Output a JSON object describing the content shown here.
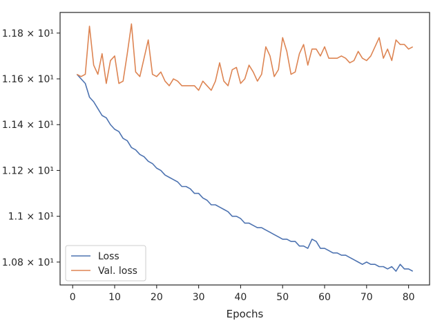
{
  "chart_data": {
    "type": "line",
    "xlabel": "Epochs",
    "ylabel": "",
    "xlim": [
      -3,
      85
    ],
    "ylim": [
      10.7,
      11.89
    ],
    "x_ticks": [
      0,
      10,
      20,
      30,
      40,
      50,
      60,
      70,
      80
    ],
    "y_ticks": [
      {
        "value": 10.8,
        "label": "1.08 × 10¹"
      },
      {
        "value": 11.0,
        "label": "1.1 × 10¹"
      },
      {
        "value": 11.2,
        "label": "1.12 × 10¹"
      },
      {
        "value": 11.4,
        "label": "1.14 × 10¹"
      },
      {
        "value": 11.6,
        "label": "1.16 × 10¹"
      },
      {
        "value": 11.8,
        "label": "1.18 × 10¹"
      }
    ],
    "grid": false,
    "legend_position": "bottom-left",
    "x": [
      1,
      2,
      3,
      4,
      5,
      6,
      7,
      8,
      9,
      10,
      11,
      12,
      13,
      14,
      15,
      16,
      17,
      18,
      19,
      20,
      21,
      22,
      23,
      24,
      25,
      26,
      27,
      28,
      29,
      30,
      31,
      32,
      33,
      34,
      35,
      36,
      37,
      38,
      39,
      40,
      41,
      42,
      43,
      44,
      45,
      46,
      47,
      48,
      49,
      50,
      51,
      52,
      53,
      54,
      55,
      56,
      57,
      58,
      59,
      60,
      61,
      62,
      63,
      64,
      65,
      66,
      67,
      68,
      69,
      70,
      71,
      72,
      73,
      74,
      75,
      76,
      77,
      78,
      79,
      80,
      81
    ],
    "series": [
      {
        "name": "Loss",
        "color": "#4c72b0",
        "values": [
          11.62,
          11.6,
          11.58,
          11.52,
          11.5,
          11.47,
          11.44,
          11.43,
          11.4,
          11.38,
          11.37,
          11.34,
          11.33,
          11.3,
          11.29,
          11.27,
          11.26,
          11.24,
          11.23,
          11.21,
          11.2,
          11.18,
          11.17,
          11.16,
          11.15,
          11.13,
          11.13,
          11.12,
          11.1,
          11.1,
          11.08,
          11.07,
          11.05,
          11.05,
          11.04,
          11.03,
          11.02,
          11.0,
          11.0,
          10.99,
          10.97,
          10.97,
          10.96,
          10.95,
          10.95,
          10.94,
          10.93,
          10.92,
          10.91,
          10.9,
          10.9,
          10.89,
          10.89,
          10.87,
          10.87,
          10.86,
          10.9,
          10.89,
          10.86,
          10.86,
          10.85,
          10.84,
          10.84,
          10.83,
          10.83,
          10.82,
          10.81,
          10.8,
          10.79,
          10.8,
          10.79,
          10.79,
          10.78,
          10.78,
          10.77,
          10.78,
          10.76,
          10.79,
          10.77,
          10.77,
          10.76
        ]
      },
      {
        "name": "Val. loss",
        "color": "#dd8452",
        "values": [
          11.62,
          11.61,
          11.62,
          11.83,
          11.66,
          11.62,
          11.71,
          11.58,
          11.68,
          11.7,
          11.58,
          11.59,
          11.71,
          11.84,
          11.63,
          11.61,
          11.69,
          11.77,
          11.62,
          11.61,
          11.63,
          11.59,
          11.57,
          11.6,
          11.59,
          11.57,
          11.57,
          11.57,
          11.57,
          11.55,
          11.59,
          11.57,
          11.55,
          11.59,
          11.67,
          11.59,
          11.57,
          11.64,
          11.65,
          11.58,
          11.6,
          11.66,
          11.63,
          11.59,
          11.62,
          11.74,
          11.7,
          11.61,
          11.64,
          11.78,
          11.72,
          11.62,
          11.63,
          11.71,
          11.75,
          11.66,
          11.73,
          11.73,
          11.7,
          11.74,
          11.69,
          11.69,
          11.69,
          11.7,
          11.69,
          11.67,
          11.68,
          11.72,
          11.69,
          11.68,
          11.7,
          11.74,
          11.78,
          11.69,
          11.73,
          11.68,
          11.77,
          11.75,
          11.75,
          11.73,
          11.74
        ]
      }
    ]
  }
}
